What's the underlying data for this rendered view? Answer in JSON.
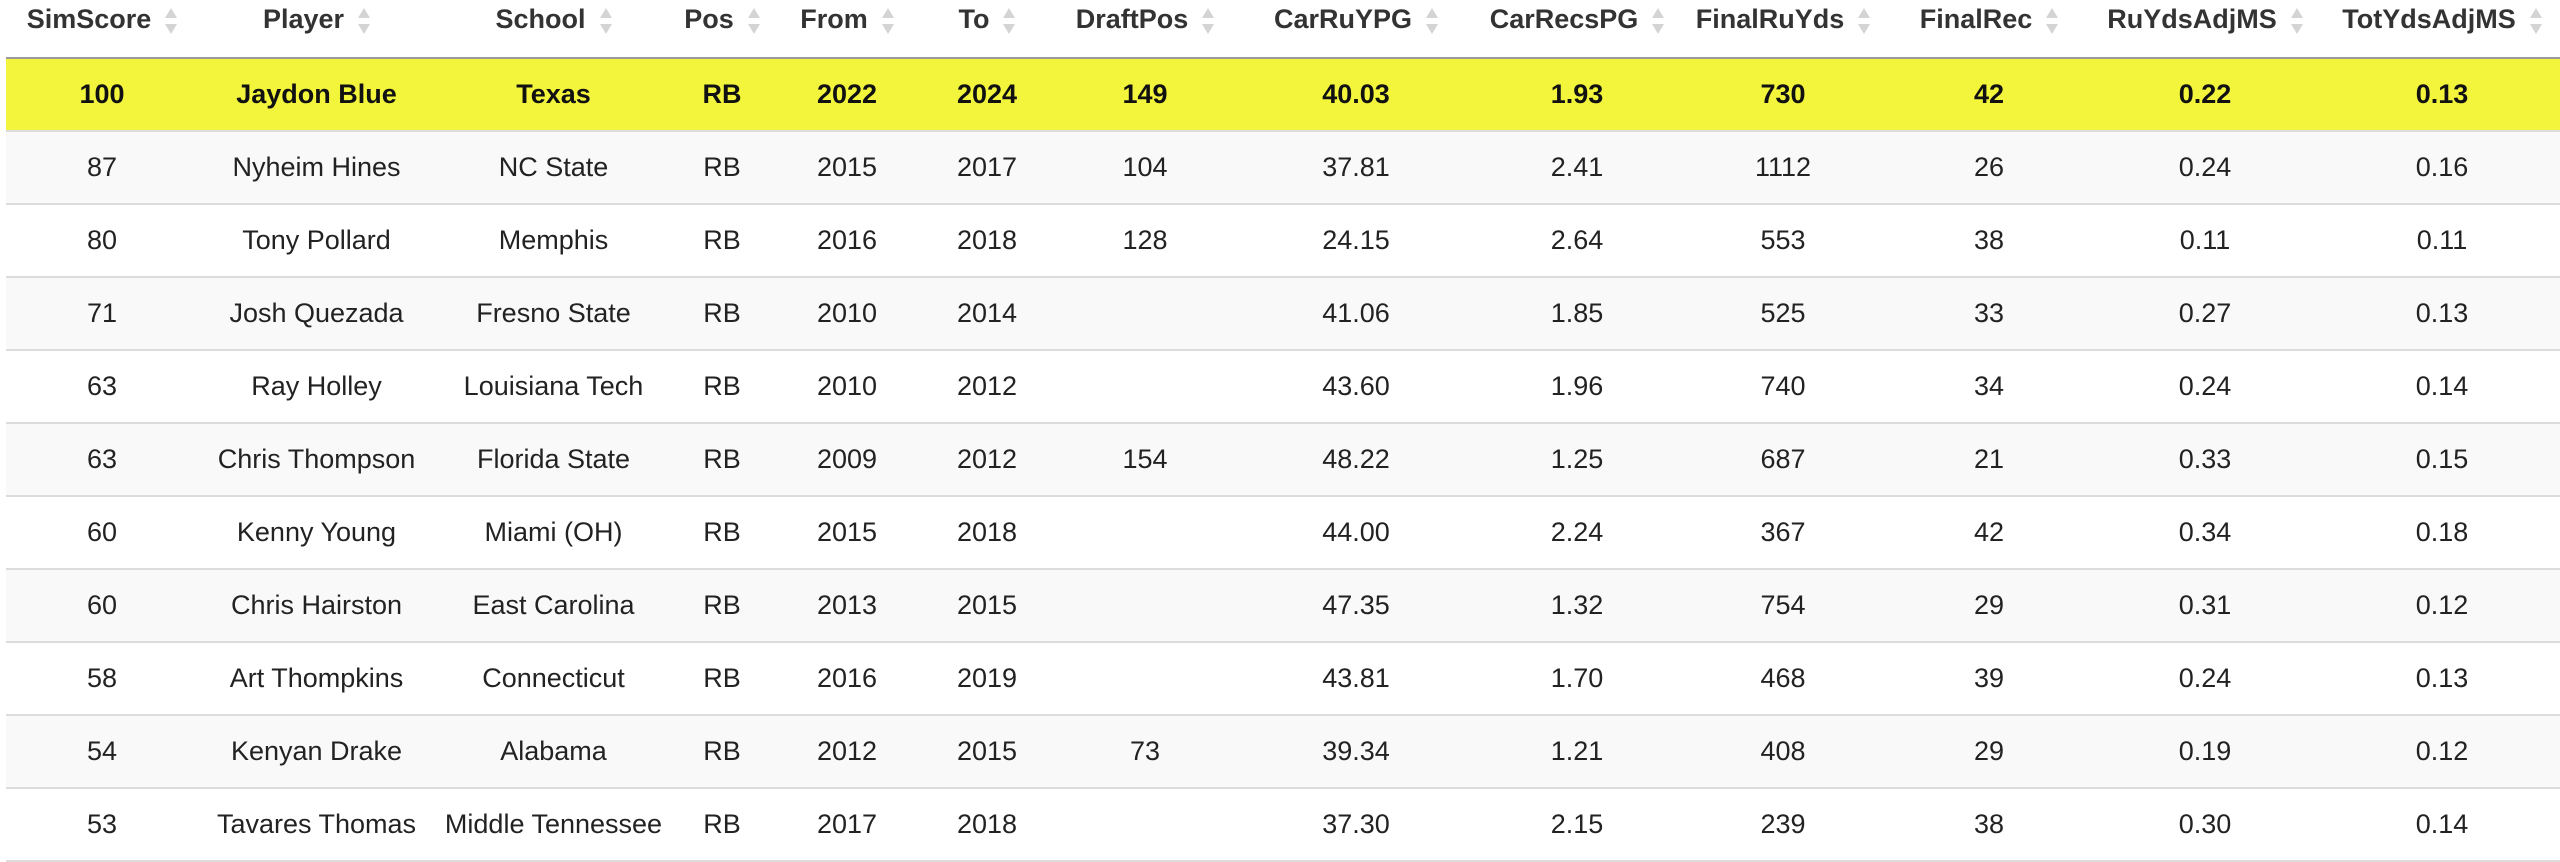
{
  "table": {
    "columns": [
      {
        "key": "simscore",
        "label": "SimScore",
        "sortable": true
      },
      {
        "key": "player",
        "label": "Player",
        "sortable": true
      },
      {
        "key": "school",
        "label": "School",
        "sortable": true
      },
      {
        "key": "pos",
        "label": "Pos",
        "sortable": true
      },
      {
        "key": "from",
        "label": "From",
        "sortable": true
      },
      {
        "key": "to",
        "label": "To",
        "sortable": true
      },
      {
        "key": "draftpos",
        "label": "DraftPos",
        "sortable": true
      },
      {
        "key": "carruypg",
        "label": "CarRuYPG",
        "sortable": true
      },
      {
        "key": "carrecspg",
        "label": "CarRecsPG",
        "sortable": true
      },
      {
        "key": "finalruyds",
        "label": "FinalRuYds",
        "sortable": true
      },
      {
        "key": "finalrec",
        "label": "FinalRec",
        "sortable": true
      },
      {
        "key": "ruydsadjms",
        "label": "RuYdsAdjMS",
        "sortable": true
      },
      {
        "key": "totydsadjms",
        "label": "TotYdsAdjMS",
        "sortable": true
      }
    ],
    "highlight_color": "#f3f53c",
    "rows": [
      {
        "simscore": "100",
        "player": "Jaydon Blue",
        "school": "Texas",
        "pos": "RB",
        "from": "2022",
        "to": "2024",
        "draftpos": "149",
        "carruypg": "40.03",
        "carrecspg": "1.93",
        "finalruyds": "730",
        "finalrec": "42",
        "ruydsadjms": "0.22",
        "totydsadjms": "0.13",
        "highlight": true
      },
      {
        "simscore": "87",
        "player": "Nyheim Hines",
        "school": "NC State",
        "pos": "RB",
        "from": "2015",
        "to": "2017",
        "draftpos": "104",
        "carruypg": "37.81",
        "carrecspg": "2.41",
        "finalruyds": "1112",
        "finalrec": "26",
        "ruydsadjms": "0.24",
        "totydsadjms": "0.16"
      },
      {
        "simscore": "80",
        "player": "Tony Pollard",
        "school": "Memphis",
        "pos": "RB",
        "from": "2016",
        "to": "2018",
        "draftpos": "128",
        "carruypg": "24.15",
        "carrecspg": "2.64",
        "finalruyds": "553",
        "finalrec": "38",
        "ruydsadjms": "0.11",
        "totydsadjms": "0.11"
      },
      {
        "simscore": "71",
        "player": "Josh Quezada",
        "school": "Fresno State",
        "pos": "RB",
        "from": "2010",
        "to": "2014",
        "draftpos": "",
        "carruypg": "41.06",
        "carrecspg": "1.85",
        "finalruyds": "525",
        "finalrec": "33",
        "ruydsadjms": "0.27",
        "totydsadjms": "0.13"
      },
      {
        "simscore": "63",
        "player": "Ray Holley",
        "school": "Louisiana Tech",
        "pos": "RB",
        "from": "2010",
        "to": "2012",
        "draftpos": "",
        "carruypg": "43.60",
        "carrecspg": "1.96",
        "finalruyds": "740",
        "finalrec": "34",
        "ruydsadjms": "0.24",
        "totydsadjms": "0.14"
      },
      {
        "simscore": "63",
        "player": "Chris Thompson",
        "school": "Florida State",
        "pos": "RB",
        "from": "2009",
        "to": "2012",
        "draftpos": "154",
        "carruypg": "48.22",
        "carrecspg": "1.25",
        "finalruyds": "687",
        "finalrec": "21",
        "ruydsadjms": "0.33",
        "totydsadjms": "0.15"
      },
      {
        "simscore": "60",
        "player": "Kenny Young",
        "school": "Miami (OH)",
        "pos": "RB",
        "from": "2015",
        "to": "2018",
        "draftpos": "",
        "carruypg": "44.00",
        "carrecspg": "2.24",
        "finalruyds": "367",
        "finalrec": "42",
        "ruydsadjms": "0.34",
        "totydsadjms": "0.18"
      },
      {
        "simscore": "60",
        "player": "Chris Hairston",
        "school": "East Carolina",
        "pos": "RB",
        "from": "2013",
        "to": "2015",
        "draftpos": "",
        "carruypg": "47.35",
        "carrecspg": "1.32",
        "finalruyds": "754",
        "finalrec": "29",
        "ruydsadjms": "0.31",
        "totydsadjms": "0.12"
      },
      {
        "simscore": "58",
        "player": "Art Thompkins",
        "school": "Connecticut",
        "pos": "RB",
        "from": "2016",
        "to": "2019",
        "draftpos": "",
        "carruypg": "43.81",
        "carrecspg": "1.70",
        "finalruyds": "468",
        "finalrec": "39",
        "ruydsadjms": "0.24",
        "totydsadjms": "0.13"
      },
      {
        "simscore": "54",
        "player": "Kenyan Drake",
        "school": "Alabama",
        "pos": "RB",
        "from": "2012",
        "to": "2015",
        "draftpos": "73",
        "carruypg": "39.34",
        "carrecspg": "1.21",
        "finalruyds": "408",
        "finalrec": "29",
        "ruydsadjms": "0.19",
        "totydsadjms": "0.12"
      },
      {
        "simscore": "53",
        "player": "Tavares Thomas",
        "school": "Middle Tennessee",
        "pos": "RB",
        "from": "2017",
        "to": "2018",
        "draftpos": "",
        "carruypg": "37.30",
        "carrecspg": "2.15",
        "finalruyds": "239",
        "finalrec": "38",
        "ruydsadjms": "0.30",
        "totydsadjms": "0.14"
      }
    ]
  }
}
